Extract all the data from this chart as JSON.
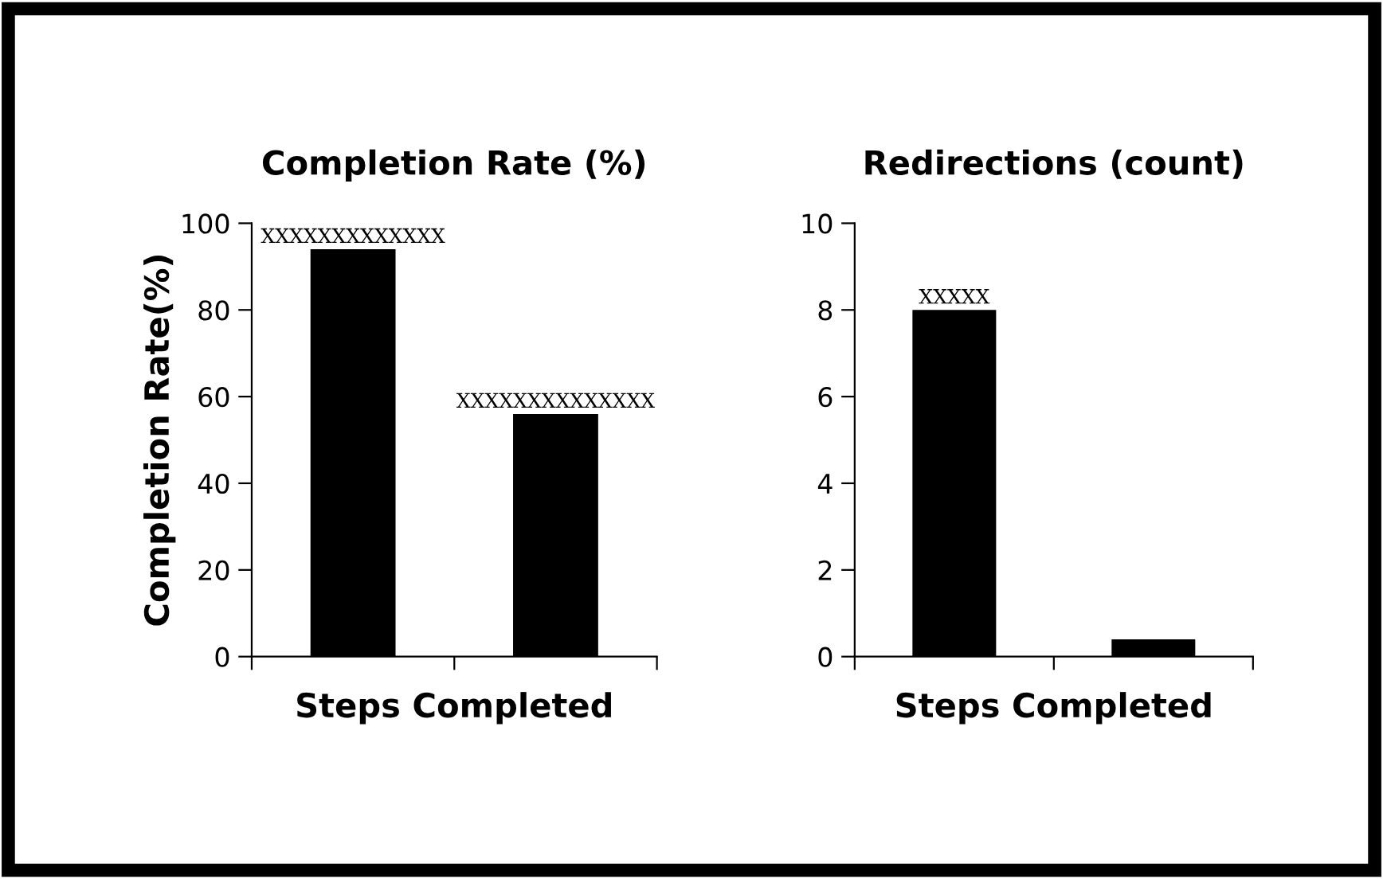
{
  "chart_data": [
    {
      "type": "bar",
      "title": "Completion Rate (%)",
      "xlabel": "Steps Completed",
      "ylabel": "Completion Rate(%)",
      "categories": [
        null,
        null
      ],
      "values": [
        94,
        56
      ],
      "color": "#000000",
      "ylim": [
        0,
        100
      ],
      "yticks": [
        0,
        20,
        40,
        60,
        80,
        100
      ],
      "tick_labels": "y",
      "grid": false,
      "annotations": [
        {
          "text": "XXXXXXXXXXXXX",
          "y": 94
        },
        {
          "text": "XXXXXXXXXXXXXX",
          "y": 56
        }
      ]
    },
    {
      "type": "bar",
      "title": "Redirections (count)",
      "xlabel": "Steps Completed",
      "categories": [
        null,
        null
      ],
      "values": [
        8,
        0.4
      ],
      "color": "#000000",
      "ylim": [
        0,
        10
      ],
      "yticks": [
        0,
        2,
        4,
        6,
        8,
        10
      ],
      "tick_labels": "y",
      "grid": false,
      "annotations": [
        {
          "text": "XXXXX",
          "y": 8
        }
      ]
    }
  ]
}
